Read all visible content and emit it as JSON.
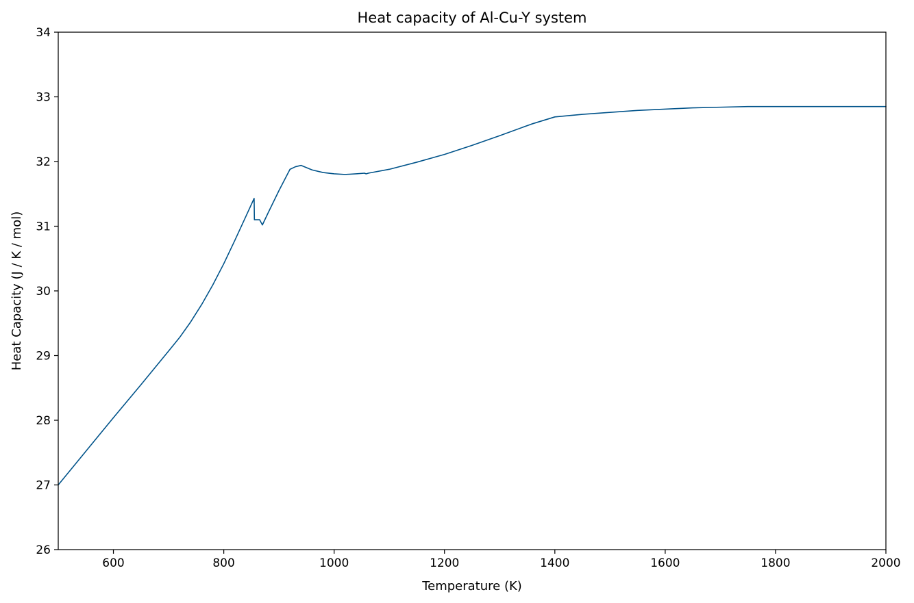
{
  "chart_data": {
    "type": "line",
    "title": "Heat capacity of Al-Cu-Y system",
    "xlabel": "Temperature (K)",
    "ylabel": "Heat Capacity (J / K / mol)",
    "xlim": [
      500,
      2000
    ],
    "ylim": [
      26,
      34
    ],
    "xticks": [
      600,
      800,
      1000,
      1200,
      1400,
      1600,
      1800,
      2000
    ],
    "yticks": [
      26,
      27,
      28,
      29,
      30,
      31,
      32,
      33,
      34
    ],
    "xtick_labels": [
      "600",
      "800",
      "1000",
      "1200",
      "1400",
      "1600",
      "1800",
      "2000"
    ],
    "ytick_labels": [
      "26",
      "27",
      "28",
      "29",
      "30",
      "31",
      "32",
      "33",
      "34"
    ],
    "grid": false,
    "legend": "none",
    "series": [
      {
        "color": "#00538a",
        "x": [
          500,
          550,
          600,
          650,
          700,
          720,
          740,
          760,
          780,
          800,
          820,
          840,
          855,
          855.5,
          865,
          870,
          880,
          900,
          920,
          930,
          940,
          960,
          980,
          1000,
          1020,
          1040,
          1055,
          1058,
          1062,
          1100,
          1150,
          1200,
          1250,
          1300,
          1358,
          1400,
          1450,
          1500,
          1550,
          1600,
          1650,
          1700,
          1750,
          1800,
          1900,
          2000
        ],
        "y": [
          27.0,
          27.52,
          28.04,
          28.55,
          29.07,
          29.28,
          29.52,
          29.79,
          30.09,
          30.42,
          30.78,
          31.15,
          31.43,
          31.1,
          31.1,
          31.02,
          31.2,
          31.55,
          31.88,
          31.92,
          31.94,
          31.87,
          31.83,
          31.81,
          31.8,
          31.81,
          31.82,
          31.81,
          31.82,
          31.88,
          31.99,
          32.11,
          32.25,
          32.4,
          32.58,
          32.69,
          32.73,
          32.76,
          32.79,
          32.81,
          32.83,
          32.84,
          32.85,
          32.85,
          32.85,
          32.85
        ]
      }
    ]
  }
}
